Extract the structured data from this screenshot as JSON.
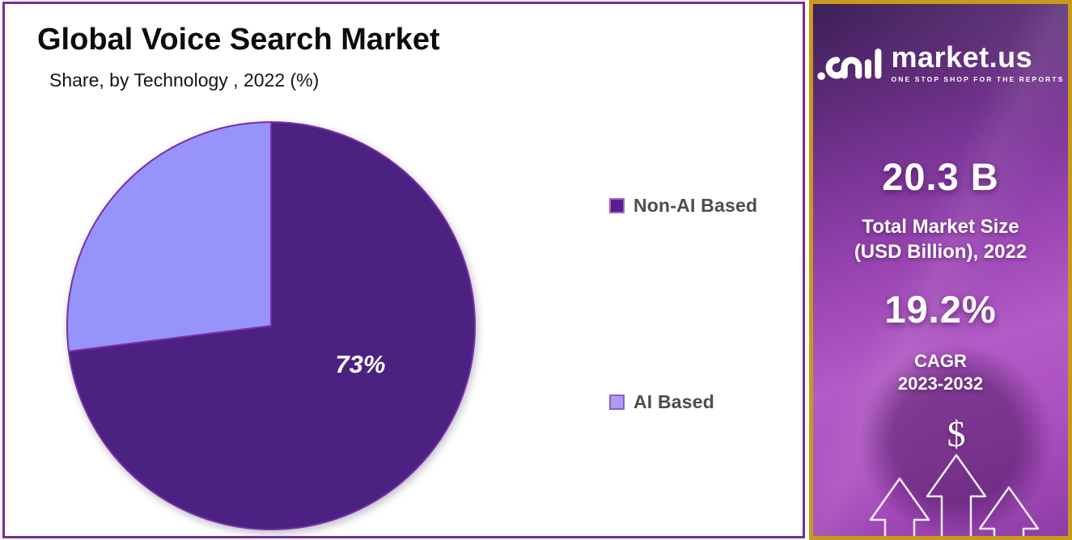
{
  "header": {
    "title": "Global Voice Search Market",
    "subtitle": "Share, by Technology , 2022 (%)"
  },
  "chart_data": {
    "type": "pie",
    "title": "Global Voice Search Market",
    "subtitle": "Share, by Technology , 2022 (%)",
    "unit": "%",
    "year": "2022",
    "labels": [
      "Non-AI Based",
      "AI Based"
    ],
    "values": [
      73,
      27
    ],
    "colors": [
      "#4B2182",
      "#9693FA"
    ],
    "slice_border_color": "#7B2FA3",
    "start_angle_deg": 0,
    "direction": "clockwise",
    "legend_position": "right",
    "data_labels": [
      {
        "slice_index": 0,
        "text": "73%",
        "color": "#FFFFFF"
      }
    ]
  },
  "legend": {
    "items": [
      {
        "label": "Non-AI Based",
        "swatch_fill": "#571F8B",
        "swatch_border": "#A569C9"
      },
      {
        "label": "AI Based",
        "swatch_fill": "#A99EF5",
        "swatch_border": "#8B5CD6"
      }
    ]
  },
  "sidebar": {
    "brand": {
      "name": "market.us",
      "tagline": "ONE STOP SHOP FOR THE REPORTS"
    },
    "stats": [
      {
        "value": "20.3 B",
        "label_lines": [
          "Total Market Size",
          "(USD Billion), 2022"
        ]
      },
      {
        "value": "19.2%",
        "label_lines": [
          "CAGR",
          "2023-2032"
        ]
      }
    ],
    "dollar_symbol": "$",
    "accent_border_color": "#C7991C"
  }
}
